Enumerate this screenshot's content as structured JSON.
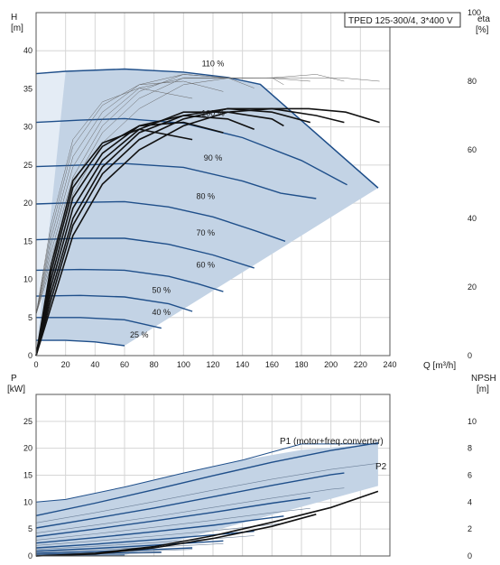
{
  "chart_data": [
    {
      "type": "line",
      "title": "TPED 125-300/4, 3*400 V",
      "ylabel": "H",
      "yunit": "[m]",
      "y2label": "eta",
      "y2unit": "[%]",
      "xlabel": "Q [m³/h]",
      "xlim": [
        0,
        240
      ],
      "ylim": [
        0,
        45
      ],
      "y2lim": [
        0,
        100
      ],
      "x_ticks": [
        0,
        20,
        40,
        60,
        80,
        100,
        120,
        140,
        160,
        180,
        200,
        220,
        240
      ],
      "y_ticks": [
        0,
        5,
        10,
        15,
        20,
        25,
        30,
        35,
        40
      ],
      "y2_ticks": [
        0,
        20,
        40,
        60,
        80,
        100
      ],
      "grid": true,
      "colors": {
        "curve": "#1f4f8a",
        "area": "#c3d3e5",
        "area_edge": "#1f4f8a",
        "efficiency": "#111111",
        "grid": "#d6d6d6"
      },
      "speed_curves": [
        {
          "label": "110 %",
          "x": [
            0,
            20,
            60,
            100,
            130,
            152,
            232
          ],
          "y": [
            37,
            37.3,
            37.6,
            37.2,
            36.5,
            35.6,
            22
          ]
        },
        {
          "label": "100 %",
          "x": [
            0,
            30,
            60,
            100,
            140,
            180,
            211
          ],
          "y": [
            30.6,
            30.9,
            31.1,
            30.5,
            28.6,
            25.6,
            22.4
          ]
        },
        {
          "label": "90 %",
          "x": [
            0,
            30,
            60,
            100,
            140,
            166,
            190
          ],
          "y": [
            24.8,
            25,
            25.2,
            24.7,
            22.9,
            21.3,
            20.6
          ]
        },
        {
          "label": "80 %",
          "x": [
            0,
            30,
            60,
            90,
            120,
            150,
            169
          ],
          "y": [
            19.9,
            20.1,
            20.2,
            19.5,
            18.2,
            16.3,
            15
          ]
        },
        {
          "label": "70 %",
          "x": [
            0,
            30,
            60,
            90,
            120,
            148
          ],
          "y": [
            15.2,
            15.4,
            15.4,
            14.6,
            13.2,
            11.5
          ]
        },
        {
          "label": "60 %",
          "x": [
            0,
            30,
            60,
            90,
            110,
            127
          ],
          "y": [
            11.2,
            11.3,
            11.2,
            10.4,
            9.4,
            8.4
          ]
        },
        {
          "label": "50 %",
          "x": [
            0,
            30,
            60,
            90,
            106
          ],
          "y": [
            7.8,
            7.9,
            7.7,
            6.8,
            5.8
          ]
        },
        {
          "label": "40 %",
          "x": [
            0,
            30,
            60,
            85
          ],
          "y": [
            5.0,
            5.0,
            4.7,
            3.6
          ]
        },
        {
          "label": "25 %",
          "x": [
            0,
            20,
            40,
            60
          ],
          "y": [
            2.0,
            2.0,
            1.8,
            1.3
          ]
        }
      ],
      "efficiency_curves": [
        {
          "x": [
            0,
            10,
            25,
            45,
            70,
            100,
            130,
            160,
            185,
            210,
            233
          ],
          "y": [
            0,
            14,
            35,
            50,
            60,
            67,
            71,
            72,
            72,
            71,
            68
          ]
        },
        {
          "x": [
            0,
            10,
            25,
            45,
            70,
            100,
            130,
            160,
            190,
            209
          ],
          "y": [
            0,
            16,
            38,
            53,
            63,
            69,
            72,
            72,
            70,
            68
          ]
        },
        {
          "x": [
            0,
            10,
            25,
            45,
            70,
            100,
            130,
            160,
            186
          ],
          "y": [
            0,
            18,
            40,
            55,
            65,
            70,
            72,
            71,
            68
          ]
        },
        {
          "x": [
            0,
            10,
            25,
            45,
            70,
            100,
            130,
            160,
            168
          ],
          "y": [
            0,
            20,
            43,
            57,
            66,
            71,
            71,
            69,
            67
          ]
        },
        {
          "x": [
            0,
            10,
            25,
            45,
            70,
            100,
            130,
            148
          ],
          "y": [
            0,
            22,
            46,
            59,
            67,
            70,
            69,
            66
          ]
        },
        {
          "x": [
            0,
            10,
            25,
            45,
            70,
            100,
            127
          ],
          "y": [
            0,
            24,
            49,
            61,
            67,
            68,
            65
          ]
        },
        {
          "x": [
            0,
            10,
            25,
            45,
            70,
            106
          ],
          "y": [
            0,
            26,
            51,
            62,
            66,
            63
          ]
        }
      ]
    },
    {
      "type": "line",
      "ylabel": "P",
      "yunit": "[kW]",
      "y2label": "NPSH",
      "y2unit": "[m]",
      "xlim": [
        0,
        240
      ],
      "ylim": [
        0,
        30
      ],
      "y2lim": [
        0,
        12
      ],
      "y_ticks": [
        0,
        5,
        10,
        15,
        20,
        25
      ],
      "y2_ticks": [
        0,
        2,
        4,
        6,
        8,
        10
      ],
      "grid": true,
      "labels": {
        "p1": "P1 (motor+freq.converter)",
        "p2": "P2"
      },
      "colors": {
        "curve": "#1f4f8a",
        "area": "#c3d3e5",
        "thin": "#6b7f98",
        "npsh": "#111111",
        "grid": "#d6d6d6"
      },
      "power_curves": [
        {
          "x": [
            0,
            40,
            80,
            120,
            160,
            200,
            232
          ],
          "y": [
            7.5,
            9.8,
            12.3,
            14.9,
            17.4,
            19.6,
            21.0
          ]
        },
        {
          "x": [
            0,
            40,
            80,
            120,
            160,
            200,
            209
          ],
          "y": [
            5.2,
            7.0,
            8.9,
            11.0,
            13.1,
            15.1,
            15.4
          ]
        },
        {
          "x": [
            0,
            40,
            80,
            120,
            160,
            186
          ],
          "y": [
            3.6,
            5.0,
            6.5,
            8.1,
            9.8,
            10.8
          ]
        },
        {
          "x": [
            0,
            40,
            80,
            120,
            168
          ],
          "y": [
            2.4,
            3.4,
            4.5,
            5.7,
            7.4
          ]
        },
        {
          "x": [
            0,
            40,
            80,
            120,
            148
          ],
          "y": [
            1.5,
            2.2,
            3.0,
            3.9,
            4.6
          ]
        },
        {
          "x": [
            0,
            40,
            80,
            127
          ],
          "y": [
            0.9,
            1.4,
            2.0,
            2.8
          ]
        },
        {
          "x": [
            0,
            40,
            80,
            106
          ],
          "y": [
            0.5,
            0.8,
            1.2,
            1.5
          ]
        },
        {
          "x": [
            0,
            40,
            85
          ],
          "y": [
            0.25,
            0.45,
            0.7
          ]
        },
        {
          "x": [
            0,
            30,
            60
          ],
          "y": [
            0.05,
            0.1,
            0.15
          ]
        }
      ],
      "p1_envelope": {
        "x": [
          0,
          20,
          60,
          100,
          140,
          180,
          230,
          232
        ],
        "y": [
          10,
          10.5,
          12.8,
          15.4,
          17.8,
          19.7,
          20.8,
          21
        ]
      },
      "npsh_curves": [
        {
          "x": [
            0,
            40,
            80,
            120,
            160,
            200,
            232
          ],
          "y": [
            0,
            0.2,
            0.7,
            1.5,
            2.5,
            3.6,
            4.8
          ]
        },
        {
          "x": [
            0,
            40,
            80,
            120,
            160,
            190
          ],
          "y": [
            0,
            0.15,
            0.6,
            1.3,
            2.2,
            3.1
          ]
        }
      ]
    }
  ]
}
